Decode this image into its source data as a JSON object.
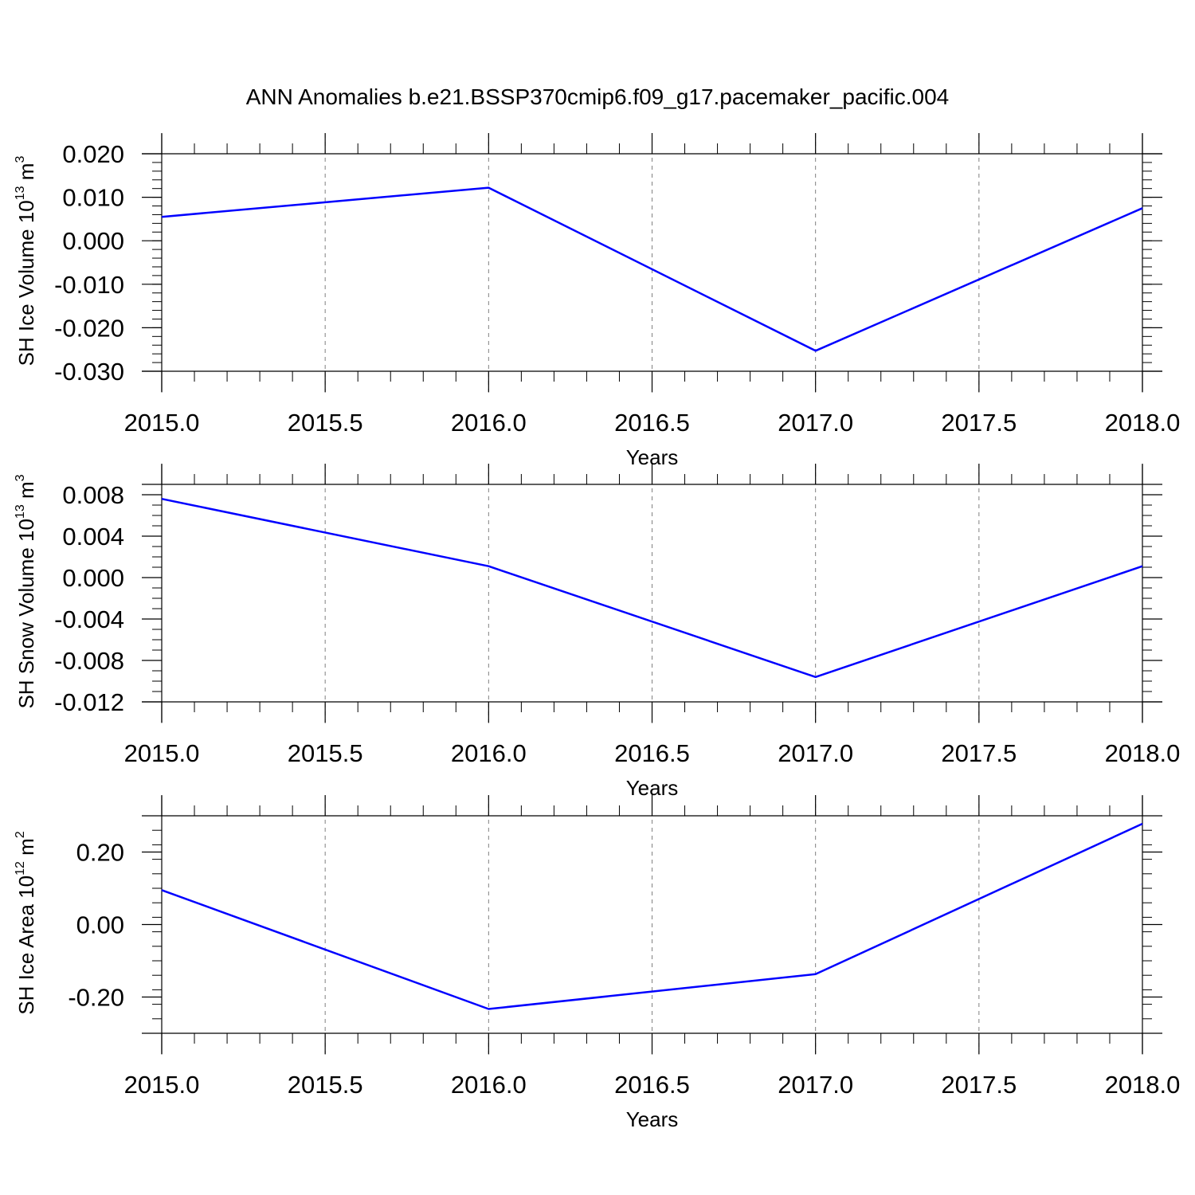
{
  "title": "ANN Anomalies b.e21.BSSP370cmip6.f09_g17.pacemaker_pacific.004",
  "colors": {
    "line": "#0000ff",
    "frame": "#000000",
    "grid": "#808080",
    "background": "#ffffff"
  },
  "chart_data": [
    {
      "type": "line",
      "ylabel": {
        "text": "SH Ice Volume 10",
        "exponent": "13",
        "unit": " m",
        "unit_exponent": "3"
      },
      "xlabel": "Years",
      "xlim": [
        2015.0,
        2018.0
      ],
      "ylim": [
        -0.03,
        0.02
      ],
      "x_ticks": [
        "2015.0",
        "2015.5",
        "2016.0",
        "2016.5",
        "2017.0",
        "2017.5",
        "2018.0"
      ],
      "y_ticks": [
        "0.020",
        "0.010",
        "0.000",
        "-0.010",
        "-0.020",
        "-0.030"
      ],
      "x_grid": "dashed vertical lines at x tick positions",
      "series": [
        {
          "x": [
            2015,
            2016,
            2017,
            2018
          ],
          "y": [
            0.0055,
            0.0122,
            -0.0253,
            0.0075
          ]
        }
      ]
    },
    {
      "type": "line",
      "ylabel": {
        "text": "SH Snow Volume 10",
        "exponent": "13",
        "unit": " m",
        "unit_exponent": "3"
      },
      "xlabel": "Years",
      "xlim": [
        2015.0,
        2018.0
      ],
      "ylim": [
        -0.012,
        0.009
      ],
      "x_ticks": [
        "2015.0",
        "2015.5",
        "2016.0",
        "2016.5",
        "2017.0",
        "2017.5",
        "2018.0"
      ],
      "y_ticks": [
        "0.008",
        "0.004",
        "0.000",
        "-0.004",
        "-0.008",
        "-0.012"
      ],
      "x_grid": "dashed vertical lines at x tick positions",
      "series": [
        {
          "x": [
            2015,
            2016,
            2017,
            2018
          ],
          "y": [
            0.0076,
            0.0011,
            -0.0096,
            0.0011
          ]
        }
      ]
    },
    {
      "type": "line",
      "ylabel": {
        "text": "SH Ice Area 10",
        "exponent": "12",
        "unit": " m",
        "unit_exponent": "2"
      },
      "xlabel": "Years",
      "xlim": [
        2015.0,
        2018.0
      ],
      "ylim": [
        -0.3,
        0.3
      ],
      "x_ticks": [
        "2015.0",
        "2015.5",
        "2016.0",
        "2016.5",
        "2017.0",
        "2017.5",
        "2018.0"
      ],
      "y_ticks": [
        "0.20",
        "0.00",
        "-0.20"
      ],
      "x_grid": "dashed vertical lines at x tick positions",
      "series": [
        {
          "x": [
            2015,
            2016,
            2017,
            2018
          ],
          "y": [
            0.095,
            -0.233,
            -0.137,
            0.278
          ]
        }
      ]
    }
  ]
}
